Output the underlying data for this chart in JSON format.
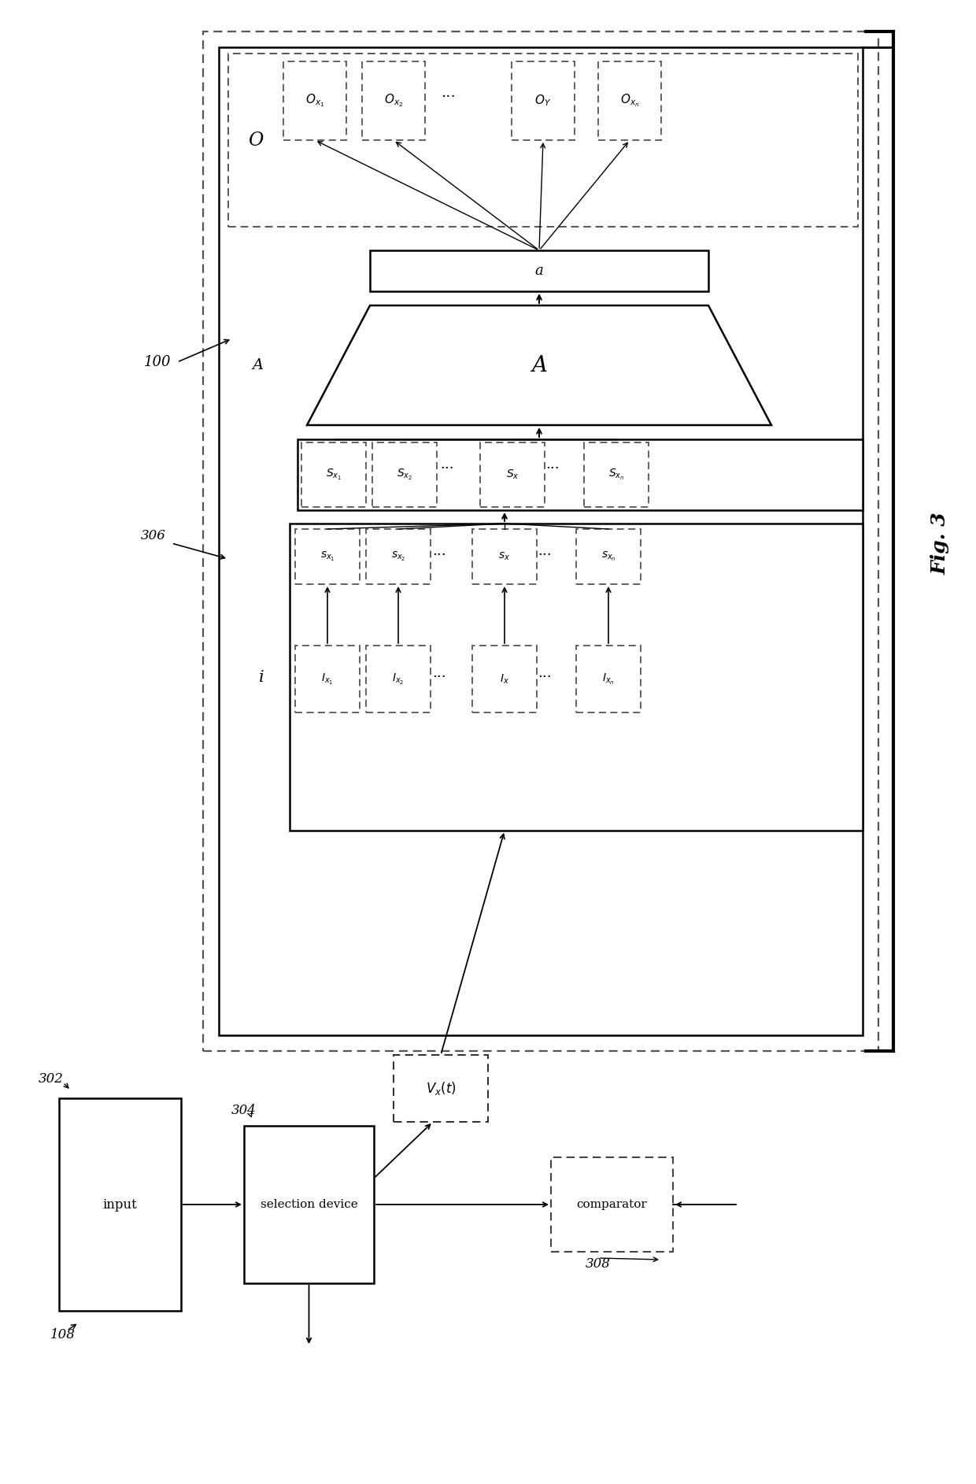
{
  "fig_label": "Fig. 3",
  "lbl_100": "100",
  "lbl_306": "306",
  "lbl_302": "302",
  "lbl_304": "304",
  "lbl_308": "308",
  "lbl_108": "108",
  "O_label": "O",
  "A_label": "A",
  "a_label": "a",
  "i_label": "i",
  "vx_label": "$V_x(t)$",
  "input_label": "input",
  "sel_label": "selection device",
  "comp_label": "comparator",
  "output_boxes": [
    "$O_{x_1}$",
    "$O_{x_2}$",
    "...",
    "$O_Y$",
    "$O_{x_n}$"
  ],
  "s_row_labels": [
    "$S_{x_1}$",
    "$S_{x_2}$",
    "...",
    "$S_x$",
    "...",
    "$S_{x_n}$"
  ],
  "i_labels": [
    "$I_{x_1}$",
    "$I_{x_2}$",
    "...",
    "$I_x$",
    "...",
    "$I_{x_n}$"
  ],
  "si_labels": [
    "$s_{x_1}$",
    "$s_{x_2}$",
    "...",
    "$s_x$",
    "...",
    "$s_{x_n}$"
  ]
}
